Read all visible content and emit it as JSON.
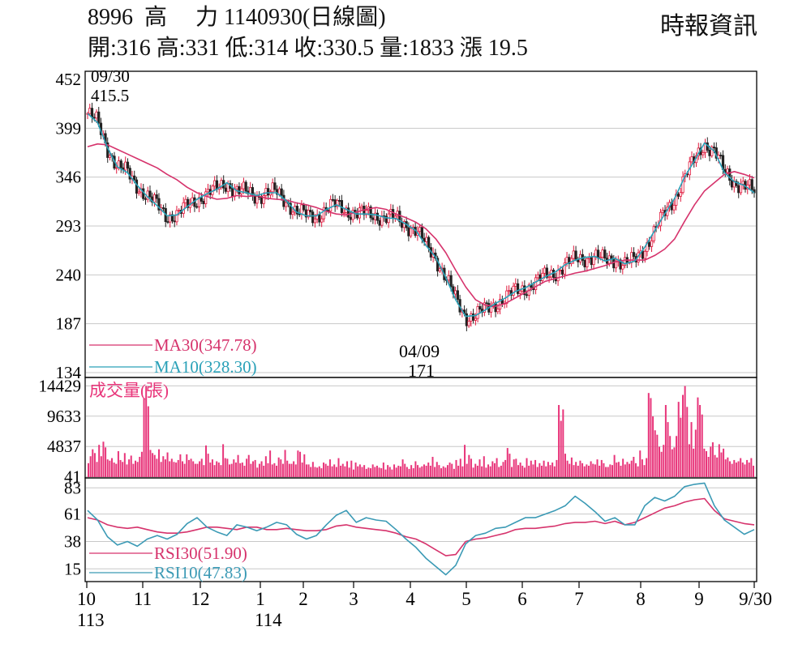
{
  "header": {
    "title": "8996  高　 力 1140930(日線圖)",
    "quote": "開:316 高:331 低:314 收:330.5 量:1833 漲 19.5",
    "source": "時報資訊"
  },
  "colors": {
    "ma30": "#d6336c",
    "ma10": "#2aa1b8",
    "volume": "#e8357a",
    "rsi30": "#d6336c",
    "rsi10": "#3b9ab5",
    "grid": "#c8c8c8",
    "up": "#e0183c",
    "down": "#222222"
  },
  "chart_data": [
    {
      "type": "candlestick",
      "panel": "price",
      "ylim": [
        134,
        452
      ],
      "ytick_labels": [
        "452",
        "399",
        "346",
        "293",
        "240",
        "187",
        "134"
      ],
      "yticks": [
        452,
        399,
        346,
        293,
        240,
        187,
        134
      ],
      "grid": true,
      "x_tick_labels": [
        "10",
        "11",
        "12",
        "1",
        "2",
        "3",
        "4",
        "5",
        "6",
        "7",
        "8",
        "9",
        "9/30"
      ],
      "x_year_labels": [
        "113",
        "114"
      ],
      "annotations": [
        {
          "date": "09/30",
          "value": "415.5"
        },
        {
          "date": "04/09",
          "value": "171"
        }
      ],
      "series": [
        {
          "name": "MA30",
          "legend": "MA30(347.78)",
          "values": [
            379,
            382,
            381,
            376,
            371,
            366,
            361,
            356,
            349,
            343,
            335,
            329,
            325,
            322,
            323,
            326,
            325,
            326,
            323,
            322,
            321,
            318,
            316,
            313,
            309,
            306,
            305,
            308,
            311,
            313,
            311,
            306,
            302,
            297,
            290,
            279,
            264,
            245,
            227,
            213,
            207,
            206,
            209,
            215,
            221,
            227,
            233,
            236,
            239,
            242,
            244,
            247,
            250,
            254,
            256,
            256,
            256,
            261,
            268,
            279,
            298,
            316,
            331,
            340,
            349,
            352,
            349,
            345
          ]
        },
        {
          "name": "MA10",
          "legend": "MA10(328.30)",
          "values": [
            415,
            405,
            378,
            357,
            351,
            337,
            325,
            315,
            304,
            305,
            314,
            322,
            328,
            333,
            340,
            331,
            329,
            326,
            329,
            329,
            320,
            308,
            304,
            304,
            311,
            316,
            311,
            306,
            306,
            305,
            302,
            301,
            295,
            288,
            272,
            259,
            237,
            213,
            195,
            196,
            202,
            209,
            215,
            222,
            226,
            232,
            238,
            243,
            251,
            256,
            259,
            260,
            255,
            258,
            252,
            255,
            270,
            288,
            306,
            323,
            346,
            364,
            383,
            374,
            351,
            341,
            337,
            329
          ]
        }
      ]
    },
    {
      "type": "bar",
      "panel": "volume",
      "title": "成交量(張)",
      "ylim": [
        0,
        15500
      ],
      "yticks": [
        14429,
        9633,
        4837,
        41
      ],
      "ytick_labels": [
        "14429",
        "9633",
        "4837",
        "41"
      ],
      "values": [
        2200,
        3300,
        4400,
        3800,
        2400,
        5100,
        3300,
        5600,
        4700,
        2800,
        2600,
        3000,
        2300,
        2100,
        4100,
        2700,
        2400,
        3800,
        2000,
        2800,
        3400,
        2100,
        2600,
        2400,
        3200,
        4000,
        12500,
        14400,
        11200,
        4300,
        3800,
        3500,
        2900,
        4400,
        2400,
        3300,
        2800,
        3900,
        2500,
        2900,
        2400,
        2300,
        2700,
        3600,
        2500,
        2100,
        3600,
        2700,
        2900,
        2500,
        2100,
        2100,
        2500,
        2900,
        1900,
        5000,
        3700,
        2300,
        2800,
        1900,
        2500,
        2300,
        1900,
        5200,
        3000,
        2900,
        2000,
        2100,
        2800,
        2300,
        3500,
        2200,
        2300,
        1800,
        2900,
        3500,
        2100,
        2500,
        2700,
        1500,
        2100,
        2500,
        1800,
        3300,
        2200,
        4200,
        2000,
        2200,
        1800,
        3100,
        2800,
        2100,
        4300,
        2600,
        2100,
        2100,
        2500,
        2000,
        4200,
        4000,
        2300,
        3600,
        2000,
        2000,
        1600,
        2400,
        1600,
        1500,
        1700,
        1400,
        2300,
        2100,
        1800,
        2800,
        1700,
        2000,
        1600,
        3000,
        1800,
        2100,
        1700,
        2500,
        1500,
        2600,
        1200,
        2300,
        1700,
        2000,
        1600,
        1900,
        1300,
        1500,
        1400,
        2000,
        1600,
        1800,
        1500,
        1400,
        2300,
        1200,
        1900,
        1600,
        1200,
        2000,
        1500,
        1800,
        1700,
        2800,
        2100,
        1600,
        1300,
        1900,
        1400,
        2500,
        1900,
        1500,
        1700,
        2000,
        1800,
        2300,
        1800,
        3200,
        1600,
        2400,
        1900,
        1400,
        1700,
        1500,
        1900,
        2300,
        2100,
        1300,
        2700,
        1800,
        2900,
        1700,
        5100,
        2100,
        3500,
        2900,
        1500,
        2100,
        1800,
        2800,
        1700,
        3300,
        1500,
        2000,
        1700,
        2500,
        2200,
        3000,
        1600,
        1800,
        2400,
        2700,
        4600,
        3700,
        1600,
        2800,
        2900,
        1900,
        2300,
        1800,
        1500,
        3000,
        1800,
        2600,
        2000,
        2700,
        1600,
        2200,
        1800,
        2600,
        1700,
        2400,
        1900,
        2300,
        1700,
        2700,
        11400,
        8900,
        10700,
        3700,
        2600,
        2100,
        3100,
        1900,
        2400,
        1800,
        2600,
        2200,
        1700,
        2000,
        1800,
        2500,
        2100,
        2000,
        2800,
        1800,
        2700,
        2200,
        1600,
        1600,
        2000,
        1900,
        3500,
        2300,
        2400,
        1800,
        2900,
        2000,
        2400,
        2100,
        2600,
        3200,
        2200,
        1700,
        4200,
        2800,
        1900,
        3000,
        13300,
        12500,
        9600,
        7400,
        6700,
        4800,
        4000,
        5100,
        11400,
        8700,
        6500,
        4400,
        4700,
        6500,
        11900,
        9400,
        13000,
        14400,
        11100,
        5200,
        8700,
        4500,
        7500,
        12600,
        11400,
        9900,
        4500,
        4100,
        3200,
        4800,
        5500,
        3500,
        3100,
        5200,
        3900,
        4500,
        2800,
        3100,
        2500,
        2100,
        2700,
        2300,
        2500,
        3000,
        2300,
        2000,
        2700,
        2300,
        3000,
        1800
      ]
    },
    {
      "type": "line",
      "panel": "rsi",
      "ylim": [
        5,
        90
      ],
      "yticks": [
        83,
        61,
        38,
        15
      ],
      "ytick_labels": [
        "83",
        "61",
        "38",
        "15"
      ],
      "series": [
        {
          "name": "RSI30",
          "legend": "RSI30(51.90)",
          "values": [
            58,
            56,
            52,
            50,
            49,
            50,
            48,
            46,
            45,
            45,
            46,
            48,
            50,
            50,
            49,
            48,
            50,
            50,
            48,
            48,
            49,
            48,
            47,
            47,
            48,
            51,
            52,
            50,
            49,
            48,
            47,
            45,
            42,
            40,
            36,
            31,
            26,
            27,
            38,
            40,
            41,
            43,
            45,
            48,
            49,
            49,
            50,
            51,
            53,
            54,
            54,
            55,
            53,
            55,
            52,
            54,
            58,
            62,
            66,
            68,
            71,
            73,
            74,
            64,
            57,
            55,
            53,
            52
          ]
        },
        {
          "name": "RSI10",
          "legend": "RSI10(47.83)",
          "values": [
            64,
            56,
            42,
            35,
            38,
            34,
            40,
            43,
            40,
            44,
            53,
            58,
            50,
            46,
            43,
            52,
            50,
            47,
            50,
            54,
            52,
            44,
            40,
            43,
            52,
            60,
            64,
            54,
            58,
            56,
            55,
            48,
            40,
            33,
            24,
            17,
            10,
            18,
            36,
            43,
            45,
            49,
            50,
            54,
            58,
            58,
            61,
            64,
            68,
            76,
            70,
            63,
            55,
            58,
            52,
            52,
            68,
            75,
            72,
            76,
            84,
            86,
            87,
            68,
            56,
            50,
            44,
            48
          ]
        }
      ]
    }
  ]
}
